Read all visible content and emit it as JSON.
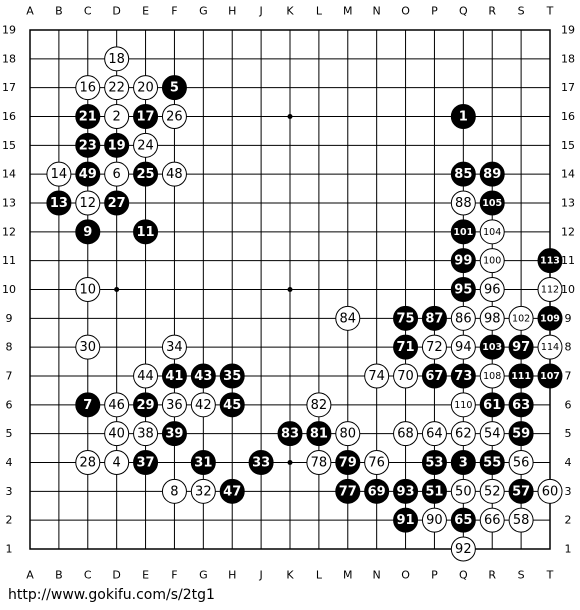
{
  "board": {
    "columns": [
      "A",
      "B",
      "C",
      "D",
      "E",
      "F",
      "G",
      "H",
      "J",
      "K",
      "L",
      "M",
      "N",
      "O",
      "P",
      "Q",
      "R",
      "S",
      "T"
    ],
    "rows": [
      19,
      18,
      17,
      16,
      15,
      14,
      13,
      12,
      11,
      10,
      9,
      8,
      7,
      6,
      5,
      4,
      3,
      2,
      1
    ],
    "stones": [
      {
        "point": [
          "D",
          18
        ],
        "move": 18,
        "color": "white"
      },
      {
        "point": [
          "C",
          17
        ],
        "move": 16,
        "color": "white"
      },
      {
        "point": [
          "D",
          17
        ],
        "move": 22,
        "color": "white"
      },
      {
        "point": [
          "E",
          17
        ],
        "move": 20,
        "color": "white"
      },
      {
        "point": [
          "F",
          17
        ],
        "move": 5,
        "color": "black"
      },
      {
        "point": [
          "C",
          16
        ],
        "move": 21,
        "color": "black"
      },
      {
        "point": [
          "D",
          16
        ],
        "move": 2,
        "color": "white"
      },
      {
        "point": [
          "E",
          16
        ],
        "move": 17,
        "color": "black"
      },
      {
        "point": [
          "F",
          16
        ],
        "move": 26,
        "color": "white"
      },
      {
        "point": [
          "Q",
          16
        ],
        "move": 1,
        "color": "black"
      },
      {
        "point": [
          "C",
          15
        ],
        "move": 23,
        "color": "black"
      },
      {
        "point": [
          "D",
          15
        ],
        "move": 19,
        "color": "black"
      },
      {
        "point": [
          "E",
          15
        ],
        "move": 24,
        "color": "white"
      },
      {
        "point": [
          "B",
          14
        ],
        "move": 14,
        "color": "white"
      },
      {
        "point": [
          "C",
          14
        ],
        "move": 49,
        "color": "black"
      },
      {
        "point": [
          "D",
          14
        ],
        "move": 6,
        "color": "white"
      },
      {
        "point": [
          "E",
          14
        ],
        "move": 25,
        "color": "black"
      },
      {
        "point": [
          "F",
          14
        ],
        "move": 48,
        "color": "white"
      },
      {
        "point": [
          "Q",
          14
        ],
        "move": 85,
        "color": "black"
      },
      {
        "point": [
          "R",
          14
        ],
        "move": 89,
        "color": "black"
      },
      {
        "point": [
          "B",
          13
        ],
        "move": 13,
        "color": "black"
      },
      {
        "point": [
          "C",
          13
        ],
        "move": 12,
        "color": "white"
      },
      {
        "point": [
          "D",
          13
        ],
        "move": 27,
        "color": "black"
      },
      {
        "point": [
          "Q",
          13
        ],
        "move": 88,
        "color": "white"
      },
      {
        "point": [
          "R",
          13
        ],
        "move": 105,
        "color": "black"
      },
      {
        "point": [
          "C",
          12
        ],
        "move": 9,
        "color": "black"
      },
      {
        "point": [
          "E",
          12
        ],
        "move": 11,
        "color": "black"
      },
      {
        "point": [
          "Q",
          12
        ],
        "move": 101,
        "color": "black"
      },
      {
        "point": [
          "R",
          12
        ],
        "move": 104,
        "color": "white"
      },
      {
        "point": [
          "Q",
          11
        ],
        "move": 99,
        "color": "black"
      },
      {
        "point": [
          "R",
          11
        ],
        "move": 100,
        "color": "white"
      },
      {
        "point": [
          "T",
          11
        ],
        "move": 113,
        "color": "black"
      },
      {
        "point": [
          "C",
          10
        ],
        "move": 10,
        "color": "white"
      },
      {
        "point": [
          "Q",
          10
        ],
        "move": 95,
        "color": "black"
      },
      {
        "point": [
          "R",
          10
        ],
        "move": 96,
        "color": "white"
      },
      {
        "point": [
          "T",
          10
        ],
        "move": 112,
        "color": "white"
      },
      {
        "point": [
          "M",
          9
        ],
        "move": 84,
        "color": "white"
      },
      {
        "point": [
          "O",
          9
        ],
        "move": 75,
        "color": "black"
      },
      {
        "point": [
          "P",
          9
        ],
        "move": 87,
        "color": "black"
      },
      {
        "point": [
          "Q",
          9
        ],
        "move": 86,
        "color": "white"
      },
      {
        "point": [
          "R",
          9
        ],
        "move": 98,
        "color": "white"
      },
      {
        "point": [
          "S",
          9
        ],
        "move": 102,
        "color": "white"
      },
      {
        "point": [
          "T",
          9
        ],
        "move": 109,
        "color": "black"
      },
      {
        "point": [
          "C",
          8
        ],
        "move": 30,
        "color": "white"
      },
      {
        "point": [
          "F",
          8
        ],
        "move": 34,
        "color": "white"
      },
      {
        "point": [
          "O",
          8
        ],
        "move": 71,
        "color": "black"
      },
      {
        "point": [
          "P",
          8
        ],
        "move": 72,
        "color": "white"
      },
      {
        "point": [
          "Q",
          8
        ],
        "move": 94,
        "color": "white"
      },
      {
        "point": [
          "R",
          8
        ],
        "move": 103,
        "color": "black"
      },
      {
        "point": [
          "S",
          8
        ],
        "move": 97,
        "color": "black"
      },
      {
        "point": [
          "T",
          8
        ],
        "move": 114,
        "color": "white"
      },
      {
        "point": [
          "E",
          7
        ],
        "move": 44,
        "color": "white"
      },
      {
        "point": [
          "F",
          7
        ],
        "move": 41,
        "color": "black"
      },
      {
        "point": [
          "G",
          7
        ],
        "move": 43,
        "color": "black"
      },
      {
        "point": [
          "H",
          7
        ],
        "move": 35,
        "color": "black"
      },
      {
        "point": [
          "N",
          7
        ],
        "move": 74,
        "color": "white"
      },
      {
        "point": [
          "O",
          7
        ],
        "move": 70,
        "color": "white"
      },
      {
        "point": [
          "P",
          7
        ],
        "move": 67,
        "color": "black"
      },
      {
        "point": [
          "Q",
          7
        ],
        "move": 73,
        "color": "black"
      },
      {
        "point": [
          "R",
          7
        ],
        "move": 108,
        "color": "white"
      },
      {
        "point": [
          "S",
          7
        ],
        "move": 111,
        "color": "black"
      },
      {
        "point": [
          "T",
          7
        ],
        "move": 107,
        "color": "black"
      },
      {
        "point": [
          "C",
          6
        ],
        "move": 7,
        "color": "black"
      },
      {
        "point": [
          "D",
          6
        ],
        "move": 46,
        "color": "white"
      },
      {
        "point": [
          "E",
          6
        ],
        "move": 29,
        "color": "black"
      },
      {
        "point": [
          "F",
          6
        ],
        "move": 36,
        "color": "white"
      },
      {
        "point": [
          "G",
          6
        ],
        "move": 42,
        "color": "white"
      },
      {
        "point": [
          "H",
          6
        ],
        "move": 45,
        "color": "black"
      },
      {
        "point": [
          "L",
          6
        ],
        "move": 82,
        "color": "white"
      },
      {
        "point": [
          "Q",
          6
        ],
        "move": 110,
        "color": "white"
      },
      {
        "point": [
          "R",
          6
        ],
        "move": 61,
        "color": "black"
      },
      {
        "point": [
          "S",
          6
        ],
        "move": 63,
        "color": "black"
      },
      {
        "point": [
          "D",
          5
        ],
        "move": 40,
        "color": "white"
      },
      {
        "point": [
          "E",
          5
        ],
        "move": 38,
        "color": "white"
      },
      {
        "point": [
          "F",
          5
        ],
        "move": 39,
        "color": "black"
      },
      {
        "point": [
          "K",
          5
        ],
        "move": 83,
        "color": "black"
      },
      {
        "point": [
          "L",
          5
        ],
        "move": 81,
        "color": "black"
      },
      {
        "point": [
          "M",
          5
        ],
        "move": 80,
        "color": "white"
      },
      {
        "point": [
          "O",
          5
        ],
        "move": 68,
        "color": "white"
      },
      {
        "point": [
          "P",
          5
        ],
        "move": 64,
        "color": "white"
      },
      {
        "point": [
          "Q",
          5
        ],
        "move": 62,
        "color": "white"
      },
      {
        "point": [
          "R",
          5
        ],
        "move": 54,
        "color": "white"
      },
      {
        "point": [
          "S",
          5
        ],
        "move": 59,
        "color": "black"
      },
      {
        "point": [
          "C",
          4
        ],
        "move": 28,
        "color": "white"
      },
      {
        "point": [
          "D",
          4
        ],
        "move": 4,
        "color": "white"
      },
      {
        "point": [
          "E",
          4
        ],
        "move": 37,
        "color": "black"
      },
      {
        "point": [
          "G",
          4
        ],
        "move": 31,
        "color": "black"
      },
      {
        "point": [
          "J",
          4
        ],
        "move": 33,
        "color": "black"
      },
      {
        "point": [
          "L",
          4
        ],
        "move": 78,
        "color": "white"
      },
      {
        "point": [
          "M",
          4
        ],
        "move": 79,
        "color": "black"
      },
      {
        "point": [
          "N",
          4
        ],
        "move": 76,
        "color": "white"
      },
      {
        "point": [
          "P",
          4
        ],
        "move": 53,
        "color": "black"
      },
      {
        "point": [
          "Q",
          4
        ],
        "move": 3,
        "color": "black"
      },
      {
        "point": [
          "R",
          4
        ],
        "move": 55,
        "color": "black"
      },
      {
        "point": [
          "S",
          4
        ],
        "move": 56,
        "color": "white"
      },
      {
        "point": [
          "F",
          3
        ],
        "move": 8,
        "color": "white"
      },
      {
        "point": [
          "G",
          3
        ],
        "move": 32,
        "color": "white"
      },
      {
        "point": [
          "H",
          3
        ],
        "move": 47,
        "color": "black"
      },
      {
        "point": [
          "M",
          3
        ],
        "move": 77,
        "color": "black"
      },
      {
        "point": [
          "N",
          3
        ],
        "move": 69,
        "color": "black"
      },
      {
        "point": [
          "O",
          3
        ],
        "move": 93,
        "color": "black"
      },
      {
        "point": [
          "P",
          3
        ],
        "move": 51,
        "color": "black"
      },
      {
        "point": [
          "Q",
          3
        ],
        "move": 50,
        "color": "white"
      },
      {
        "point": [
          "R",
          3
        ],
        "move": 52,
        "color": "white"
      },
      {
        "point": [
          "S",
          3
        ],
        "move": 57,
        "color": "black"
      },
      {
        "point": [
          "T",
          3
        ],
        "move": 60,
        "color": "white"
      },
      {
        "point": [
          "O",
          2
        ],
        "move": 91,
        "color": "black"
      },
      {
        "point": [
          "P",
          2
        ],
        "move": 90,
        "color": "white"
      },
      {
        "point": [
          "Q",
          2
        ],
        "move": 65,
        "color": "black"
      },
      {
        "point": [
          "R",
          2
        ],
        "move": 66,
        "color": "white"
      },
      {
        "point": [
          "S",
          2
        ],
        "move": 58,
        "color": "white"
      },
      {
        "point": [
          "Q",
          1
        ],
        "move": 92,
        "color": "white"
      }
    ]
  },
  "footer": {
    "url": "http://www.gokifu.com/s/2tg1"
  }
}
